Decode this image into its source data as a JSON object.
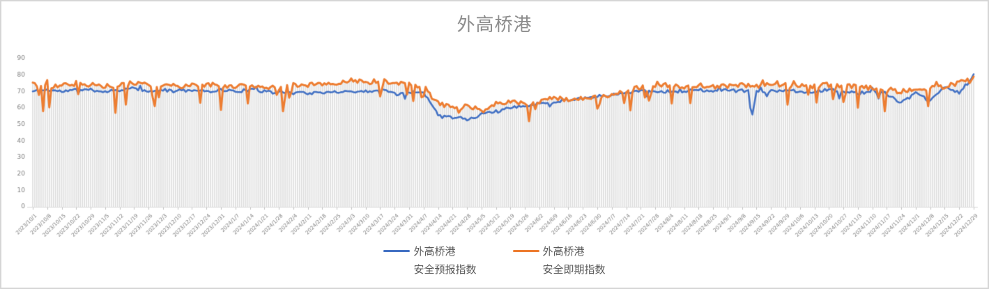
{
  "window": {
    "border_color": "#d6d6d6",
    "background": "#ffffff"
  },
  "title": {
    "text": "外高桥港",
    "color": "#8c8c8c"
  },
  "legend": [
    {
      "line1": "外高桥港",
      "line2": "安全预报指数",
      "color": "#4472C4"
    },
    {
      "line1": "外高桥港",
      "line2": "安全即期指数",
      "color": "#ED7D31"
    }
  ],
  "axes": {
    "label_color": "#808080",
    "drop_line_color": "#dcdcdc",
    "axis_line_color": "#d9d9d9",
    "tick_color": "#bfbfbf"
  },
  "chart_data": {
    "type": "line",
    "title": "外高桥港",
    "xlabel": "",
    "ylabel": "",
    "ylim": [
      0,
      90
    ],
    "y_ticks": [
      0,
      10,
      20,
      30,
      40,
      50,
      60,
      70,
      80,
      90
    ],
    "grid": "vertical-drop-lines-per-day",
    "legend_position": "bottom",
    "x_is_daily": true,
    "days_total": 456,
    "x_start_date": "2023/10/1",
    "x_end_date": "2024/12/29",
    "x_tick_interval_days": 7,
    "x_tick_labels": [
      "2023/10/1",
      "2023/10/8",
      "2023/10/15",
      "2023/10/22",
      "2023/10/29",
      "2023/11/5",
      "2023/11/12",
      "2023/11/19",
      "2023/11/26",
      "2023/12/3",
      "2023/12/10",
      "2023/12/17",
      "2023/12/24",
      "2023/12/31",
      "2024/1/7",
      "2024/1/14",
      "2024/1/21",
      "2024/1/28",
      "2024/2/4",
      "2024/2/11",
      "2024/2/18",
      "2024/2/25",
      "2024/3/3",
      "2024/3/10",
      "2024/3/17",
      "2024/3/24",
      "2024/3/31",
      "2024/4/7",
      "2024/4/14",
      "2024/4/21",
      "2024/4/28",
      "2024/5/5",
      "2024/5/12",
      "2024/5/19",
      "2024/5/26",
      "2024/6/2",
      "2024/6/9",
      "2024/6/16",
      "2024/6/23",
      "2024/6/30",
      "2024/7/7",
      "2024/7/14",
      "2024/7/21",
      "2024/7/28",
      "2024/8/4",
      "2024/8/11",
      "2024/8/18",
      "2024/8/25",
      "2024/9/1",
      "2024/9/8",
      "2024/9/15",
      "2024/9/22",
      "2024/9/29",
      "2024/10/6",
      "2024/10/13",
      "2024/10/20",
      "2024/10/27",
      "2024/11/3",
      "2024/11/10",
      "2024/11/17",
      "2024/11/24",
      "2024/12/1",
      "2024/12/8",
      "2024/12/15",
      "2024/12/22",
      "2024/12/29"
    ],
    "seed": 11,
    "series": [
      {
        "name": "外高桥港安全预报指数",
        "color": "#4472C4",
        "line_width": 2.6,
        "min_clamp": 51,
        "max_clamp": 81,
        "weekly_values": [
          70,
          71,
          70,
          71,
          71,
          70,
          71,
          72,
          70,
          71,
          70,
          71,
          70,
          71,
          70,
          71,
          70,
          69,
          70,
          69,
          69,
          70,
          70,
          70,
          71,
          70,
          70,
          69,
          56,
          55,
          53,
          56,
          58,
          60,
          61,
          63,
          64,
          65,
          66,
          67,
          68,
          69,
          71,
          70,
          70,
          70,
          71,
          70,
          71,
          70,
          70,
          70,
          71,
          70,
          70,
          71,
          70,
          69,
          70,
          69,
          63,
          69,
          64,
          73,
          69,
          80
        ],
        "noise": {
          "jitter": 0.9,
          "dip_prob": 0.04,
          "dip_depth": [
            2,
            6
          ],
          "spike_prob": 0.012,
          "spike_height": [
            1,
            2.5
          ]
        },
        "events": {
          "347": 60,
          "348": 56,
          "349": 63,
          "452": 74,
          "453": 76,
          "454": 78,
          "455": 80.5
        }
      },
      {
        "name": "外高桥港安全即期指数",
        "color": "#ED7D31",
        "line_width": 3,
        "min_clamp": 50,
        "max_clamp": 81,
        "weekly_values": [
          74,
          73,
          74,
          74,
          74,
          73,
          74,
          75,
          74,
          74,
          73,
          74,
          74,
          74,
          73,
          74,
          73,
          72,
          74,
          74,
          75,
          74,
          77,
          75,
          77,
          75,
          74,
          71,
          63,
          60,
          62,
          58,
          63,
          64,
          62,
          64,
          66,
          65,
          66,
          67,
          68,
          70,
          73,
          74,
          74,
          73,
          74,
          73,
          73,
          74,
          73,
          74,
          74,
          74,
          73,
          74,
          73,
          73,
          72,
          71,
          70,
          71,
          72,
          73,
          75,
          79
        ],
        "noise": {
          "jitter": 1.4,
          "dip_prob": 0.07,
          "dip_depth": [
            5,
            15
          ],
          "spike_prob": 0.035,
          "spike_height": [
            1,
            3.5
          ]
        },
        "events": {
          "5": 58,
          "40": 57,
          "121": 58,
          "240": 52,
          "453": 75,
          "454": 77,
          "455": 79
        }
      }
    ]
  }
}
